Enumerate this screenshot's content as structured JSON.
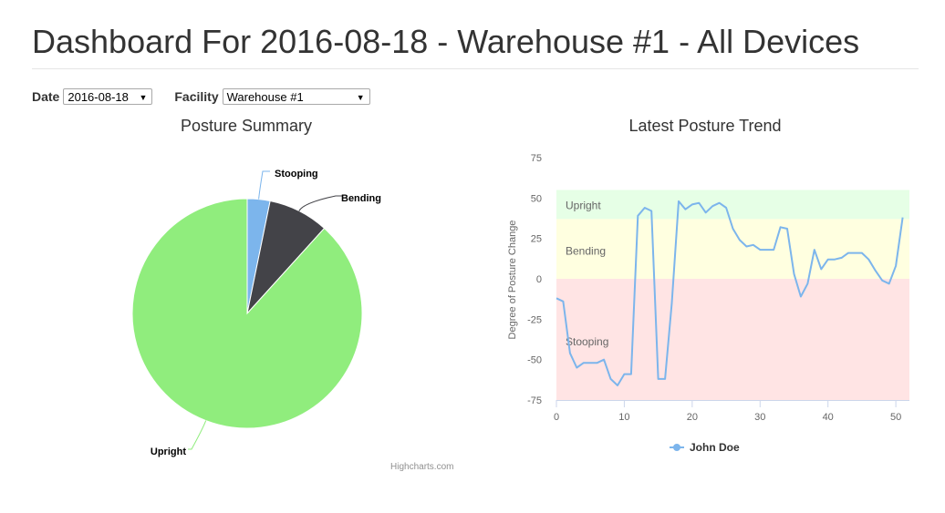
{
  "page": {
    "title": "Dashboard For 2016-08-18 - Warehouse #1 - All Devices"
  },
  "filters": {
    "date_label": "Date",
    "date_value": "2016-08-18",
    "facility_label": "Facility",
    "facility_value": "Warehouse #1"
  },
  "credits": "Highcharts.com",
  "colors": {
    "upright": "#90ed7d",
    "bending": "#434348",
    "stooping": "#7cb5ec",
    "band_upright": "#e6ffe6",
    "band_bending": "#ffffe0",
    "band_stooping": "#ffe4e4"
  },
  "chart_data": [
    {
      "type": "pie",
      "title": "Posture Summary",
      "slices": [
        {
          "name": "Stooping",
          "value": 3.2
        },
        {
          "name": "Bending",
          "value": 8.5
        },
        {
          "name": "Upright",
          "value": 88.3
        }
      ]
    },
    {
      "type": "line",
      "title": "Latest Posture Trend",
      "xlabel": "",
      "ylabel": "Degree of Posture Change",
      "xlim": [
        0,
        52
      ],
      "ylim": [
        -75,
        75
      ],
      "xticks": [
        0,
        10,
        20,
        30,
        40,
        50
      ],
      "yticks": [
        75,
        50,
        25,
        0,
        -25,
        -50,
        -75
      ],
      "bands": [
        {
          "label": "Upright",
          "from": 37,
          "to": 55
        },
        {
          "label": "Bending",
          "from": 0,
          "to": 37
        },
        {
          "label": "Stooping",
          "from": -75,
          "to": 0
        }
      ],
      "legend": "bottom-center",
      "series": [
        {
          "name": "John Doe",
          "x": [
            0,
            1,
            2,
            3,
            4,
            5,
            6,
            7,
            8,
            9,
            10,
            11,
            12,
            13,
            14,
            15,
            16,
            17,
            18,
            19,
            20,
            21,
            22,
            23,
            24,
            25,
            26,
            27,
            28,
            29,
            30,
            31,
            32,
            33,
            34,
            35,
            36,
            37,
            38,
            39,
            40,
            41,
            42,
            43,
            44,
            45,
            46,
            47,
            48,
            49,
            50,
            51
          ],
          "values": [
            -12,
            -14,
            -46,
            -55,
            -52,
            -52,
            -52,
            -50,
            -62,
            -66,
            -59,
            -59,
            39,
            44,
            42,
            -62,
            -62,
            -15,
            48,
            43,
            46,
            47,
            41,
            45,
            47,
            44,
            31,
            24,
            20,
            21,
            18,
            18,
            18,
            32,
            31,
            3,
            -11,
            -3,
            18,
            6,
            12,
            12,
            13,
            16,
            16,
            16,
            12,
            5,
            -1,
            -3,
            8,
            38
          ]
        }
      ]
    }
  ]
}
